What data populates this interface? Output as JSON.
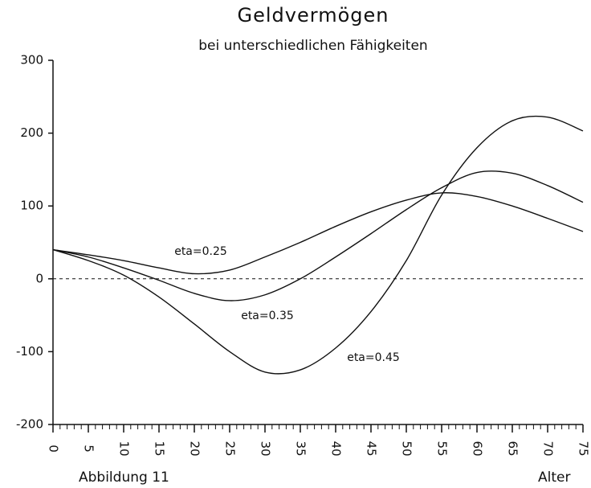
{
  "chart_data": {
    "type": "line",
    "title": "Geldvermögen",
    "subtitle": "bei unterschiedlichen Fähigkeiten",
    "xlabel": "Alter",
    "caption": "Abbildung 11",
    "x": [
      0,
      5,
      10,
      15,
      20,
      25,
      30,
      35,
      40,
      45,
      50,
      55,
      60,
      65,
      70,
      75
    ],
    "xlim": [
      0,
      75
    ],
    "xticks": [
      0,
      5,
      10,
      15,
      20,
      25,
      30,
      35,
      40,
      45,
      50,
      55,
      60,
      65,
      70,
      75
    ],
    "ylim": [
      -200,
      300
    ],
    "yticks": [
      -200,
      -100,
      0,
      100,
      200,
      300
    ],
    "series": [
      {
        "name": "eta=0.25",
        "color": "#111111",
        "values": [
          40,
          33,
          25,
          15,
          7,
          12,
          30,
          50,
          72,
          92,
          108,
          118,
          113,
          100,
          83,
          65
        ]
      },
      {
        "name": "eta=0.35",
        "color": "#111111",
        "values": [
          40,
          30,
          15,
          -2,
          -20,
          -30,
          -22,
          0,
          30,
          62,
          95,
          125,
          146,
          145,
          128,
          105
        ]
      },
      {
        "name": "eta=0.45",
        "color": "#111111",
        "values": [
          40,
          25,
          5,
          -25,
          -62,
          -100,
          -128,
          -125,
          -95,
          -45,
          25,
          115,
          180,
          217,
          222,
          203
        ]
      }
    ]
  }
}
